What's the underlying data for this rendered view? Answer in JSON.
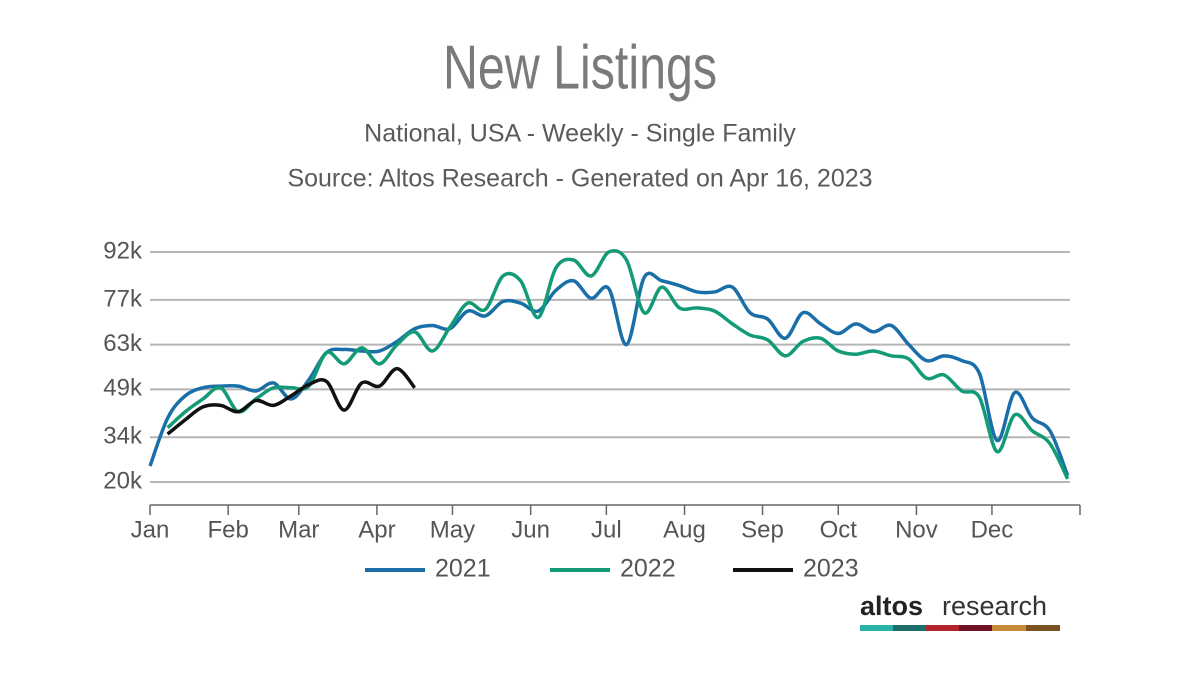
{
  "chart_data": {
    "type": "line",
    "title": "New Listings",
    "subtitle": "National, USA - Weekly - Single Family",
    "source": "Source: Altos Research - Generated on Apr 16, 2023",
    "x": [
      0,
      1,
      2,
      3,
      4,
      5,
      6,
      7,
      8,
      9,
      10,
      11,
      12,
      13,
      14,
      15,
      16,
      17,
      18,
      19,
      20,
      21,
      22,
      23,
      24,
      25,
      26,
      27,
      28,
      29,
      30,
      31,
      32,
      33,
      34,
      35,
      36,
      37,
      38,
      39,
      40,
      41,
      42,
      43,
      44,
      45,
      46,
      47,
      48,
      49,
      50,
      51,
      52
    ],
    "series": [
      {
        "name": "2021",
        "color": "#1a6fa8",
        "values": [
          25000,
          40000,
          47000,
          49500,
          50000,
          50000,
          48500,
          51000,
          46000,
          52000,
          60500,
          61500,
          61000,
          61000,
          64000,
          68000,
          69000,
          68000,
          73500,
          72000,
          76500,
          76000,
          73500,
          80000,
          83000,
          77500,
          80500,
          63000,
          84000,
          83000,
          81500,
          79500,
          79500,
          81000,
          73000,
          71000,
          65000,
          73000,
          69500,
          66500,
          69500,
          67000,
          69000,
          63000,
          58000,
          59500,
          58000,
          54000,
          33000,
          48000,
          40000,
          36000,
          22000
        ]
      },
      {
        "name": "2022",
        "color": "#139a76",
        "values": [
          null,
          37000,
          42000,
          46000,
          49500,
          42000,
          46000,
          49500,
          49500,
          50000,
          60500,
          57000,
          62000,
          57000,
          63000,
          67000,
          61000,
          68500,
          76000,
          74000,
          84500,
          83000,
          71500,
          87000,
          89500,
          84500,
          92000,
          89500,
          73000,
          81000,
          74500,
          74500,
          73500,
          69500,
          66000,
          64500,
          59500,
          64000,
          65000,
          61000,
          60000,
          61000,
          59500,
          58500,
          52500,
          53500,
          48500,
          46500,
          29500,
          41000,
          36000,
          32000,
          21000
        ]
      },
      {
        "name": "2023",
        "color": "#111111",
        "values": [
          null,
          35000,
          39500,
          43500,
          44000,
          42000,
          45500,
          44000,
          47000,
          50500,
          51500,
          42500,
          51000,
          50000,
          55500,
          49500,
          null,
          null,
          null,
          null,
          null,
          null,
          null,
          null,
          null,
          null,
          null,
          null,
          null,
          null,
          null,
          null,
          null,
          null,
          null,
          null,
          null,
          null,
          null,
          null,
          null,
          null,
          null,
          null,
          null,
          null,
          null,
          null,
          null,
          null,
          null,
          null,
          null
        ]
      }
    ],
    "xlim": [
      0,
      52.7
    ],
    "xticks": [
      {
        "value": 0,
        "label": "Jan"
      },
      {
        "value": 4.43,
        "label": "Feb"
      },
      {
        "value": 8.43,
        "label": "Mar"
      },
      {
        "value": 12.86,
        "label": "Apr"
      },
      {
        "value": 17.14,
        "label": "May"
      },
      {
        "value": 21.57,
        "label": "Jun"
      },
      {
        "value": 25.86,
        "label": "Jul"
      },
      {
        "value": 30.29,
        "label": "Aug"
      },
      {
        "value": 34.71,
        "label": "Sep"
      },
      {
        "value": 39,
        "label": "Oct"
      },
      {
        "value": 43.43,
        "label": "Nov"
      },
      {
        "value": 47.71,
        "label": "Dec"
      }
    ],
    "ylim": [
      12800,
      92000
    ],
    "yticks": [
      {
        "value": 20000,
        "label": "20k"
      },
      {
        "value": 34000,
        "label": "34k"
      },
      {
        "value": 49000,
        "label": "49k"
      },
      {
        "value": 63000,
        "label": "63k"
      },
      {
        "value": 77000,
        "label": "77k"
      },
      {
        "value": 92000,
        "label": "92k"
      }
    ],
    "grid": true,
    "legend": "bottom"
  },
  "branding": {
    "bold": "altos",
    "light": "research"
  }
}
